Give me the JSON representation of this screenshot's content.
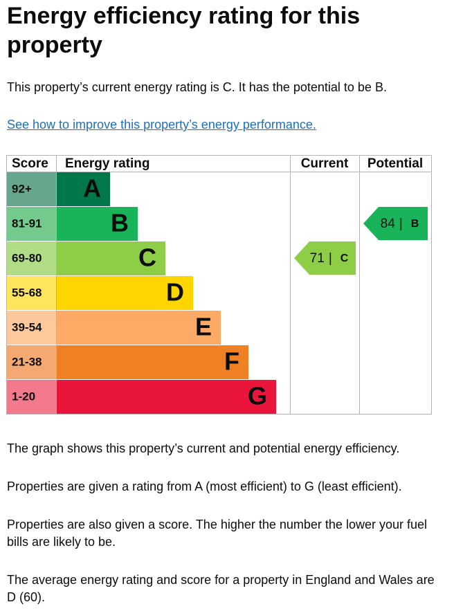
{
  "heading": "Energy efficiency rating for this property",
  "intro": "This property’s current energy rating is C. It has the potential to be B.",
  "link": "See how to improve this property’s energy performance.",
  "table": {
    "headers": [
      "Score",
      "Energy rating",
      "Current",
      "Potential"
    ],
    "rows": [
      {
        "score": "92+",
        "rating": "A",
        "color": "#00784a",
        "score_color": "#66a68c"
      },
      {
        "score": "81-91",
        "rating": "B",
        "color": "#19b459",
        "score_color": "#74c98c"
      },
      {
        "score": "69-80",
        "rating": "C",
        "color": "#8dce46",
        "score_color": "#b3dc86"
      },
      {
        "score": "55-68",
        "rating": "D",
        "color": "#ffd500",
        "score_color": "#ffe45e"
      },
      {
        "score": "39-54",
        "rating": "E",
        "color": "#fcaa65",
        "score_color": "#fdc89c"
      },
      {
        "score": "21-38",
        "rating": "F",
        "color": "#ef8023",
        "score_color": "#f4a973"
      },
      {
        "score": "1-20",
        "rating": "G",
        "color": "#e9153b",
        "score_color": "#f27a8c"
      }
    ],
    "separator": "|",
    "current": {
      "score": 71,
      "rating": "C",
      "row": 2
    },
    "potential": {
      "score": 84,
      "rating": "B",
      "row": 1
    }
  },
  "paragraphs": [
    "The graph shows this property’s current and potential energy efficiency.",
    "Properties are given a rating from A (most efficient) to G (least efficient).",
    "Properties are also given a score. The higher the number the lower your fuel bills are likely to be.",
    "The average energy rating and score for a property in England and Wales are D (60)."
  ]
}
